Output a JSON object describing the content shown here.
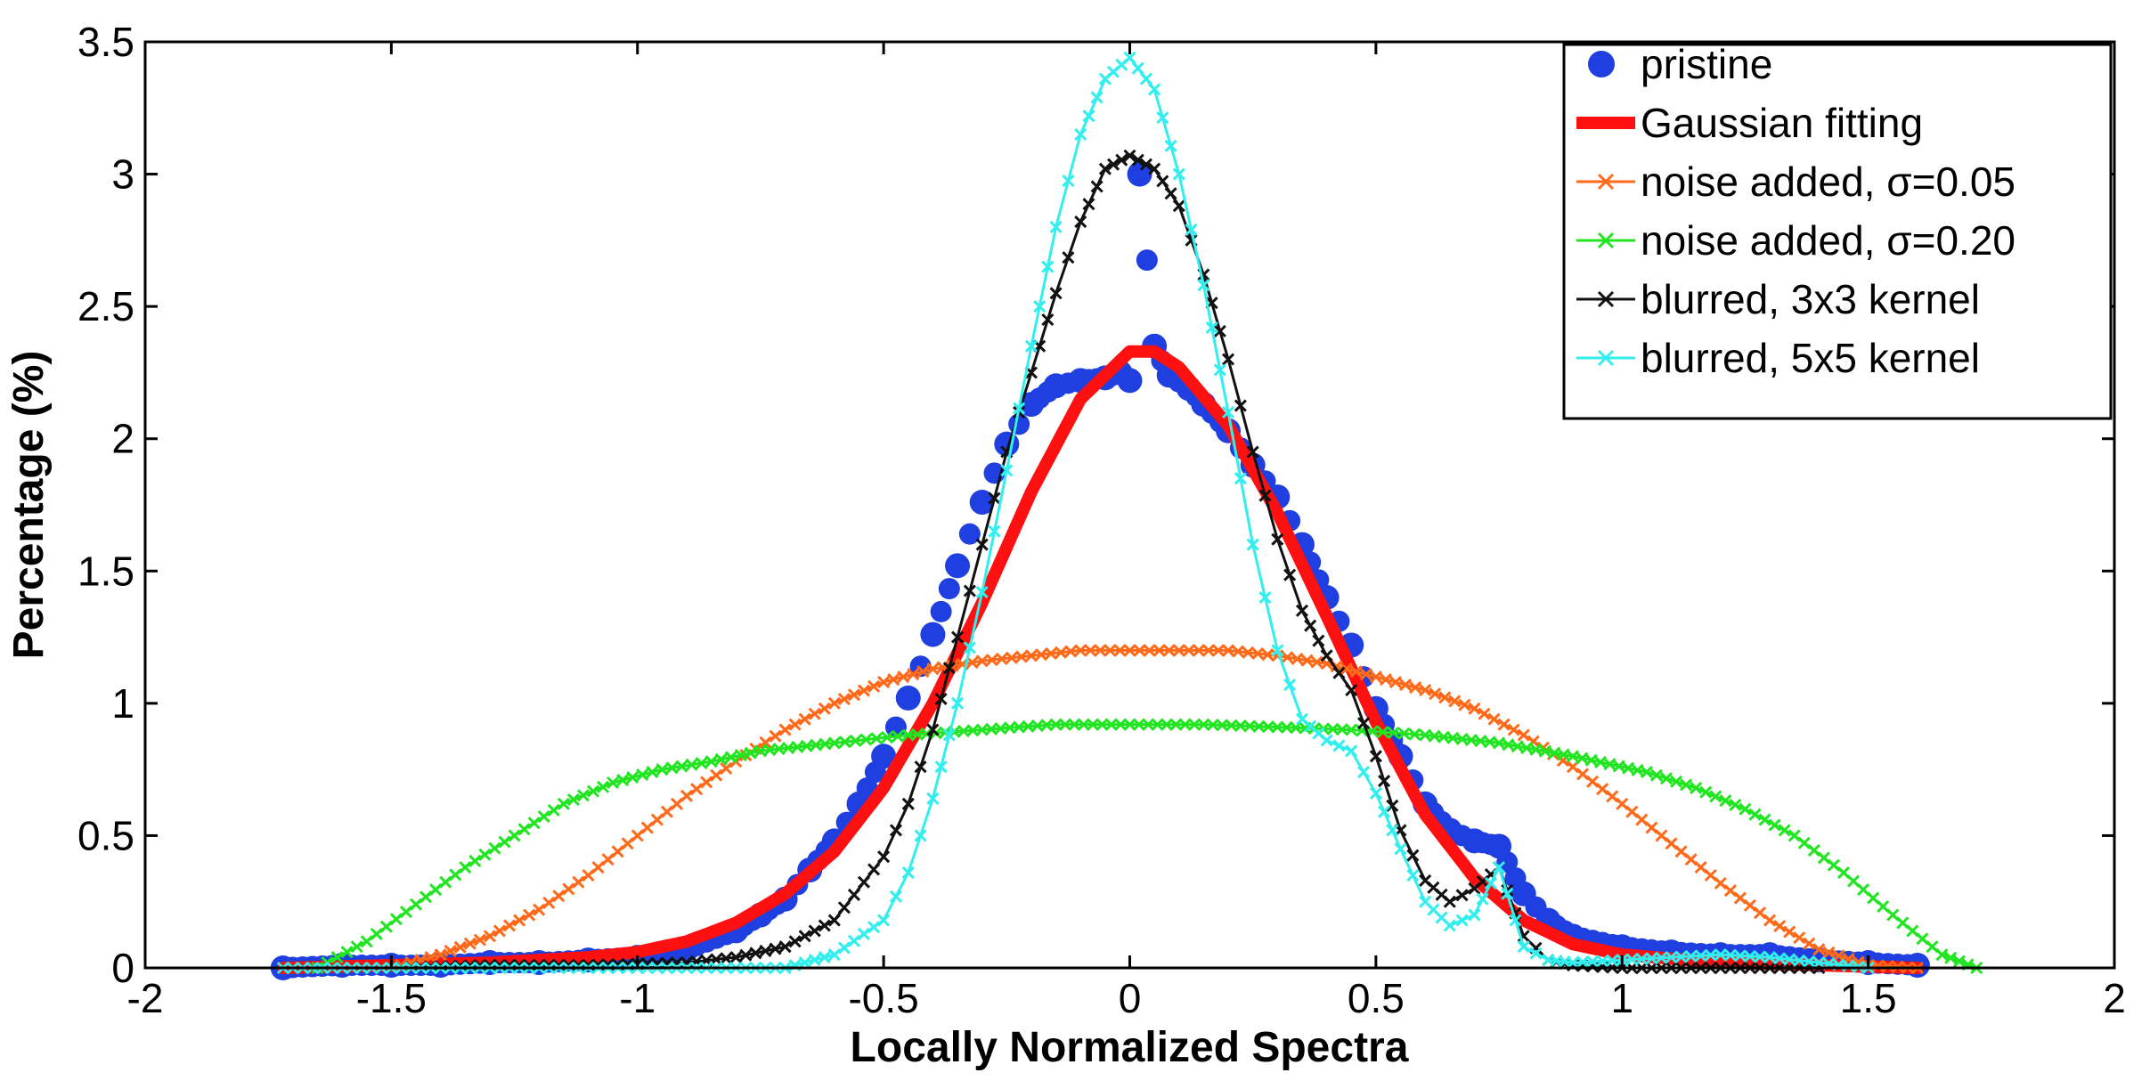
{
  "chart_data": {
    "type": "line",
    "title": "",
    "xlabel": "Locally Normalized Spectra",
    "ylabel": "Percentage (%)",
    "xlim": [
      -2,
      2
    ],
    "ylim": [
      0,
      3.5
    ],
    "grid": false,
    "legend_position": "top-right",
    "x_ticks": [
      "-2",
      "-1.5",
      "-1",
      "-0.5",
      "0",
      "0.5",
      "1",
      "1.5",
      "2"
    ],
    "y_ticks": [
      "0",
      "0.5",
      "1",
      "1.5",
      "2",
      "2.5",
      "3",
      "3.5"
    ],
    "series": [
      {
        "name": "pristine",
        "color": "#1f3fe0",
        "style": "dots",
        "points": [
          [
            -1.72,
            0.0
          ],
          [
            -1.6,
            0.01
          ],
          [
            -1.5,
            0.01
          ],
          [
            -1.4,
            0.01
          ],
          [
            -1.3,
            0.02
          ],
          [
            -1.2,
            0.02
          ],
          [
            -1.1,
            0.03
          ],
          [
            -1.0,
            0.04
          ],
          [
            -0.9,
            0.07
          ],
          [
            -0.8,
            0.14
          ],
          [
            -0.75,
            0.2
          ],
          [
            -0.7,
            0.26
          ],
          [
            -0.65,
            0.37
          ],
          [
            -0.6,
            0.48
          ],
          [
            -0.55,
            0.62
          ],
          [
            -0.5,
            0.8
          ],
          [
            -0.45,
            1.02
          ],
          [
            -0.4,
            1.26
          ],
          [
            -0.35,
            1.52
          ],
          [
            -0.3,
            1.76
          ],
          [
            -0.25,
            1.98
          ],
          [
            -0.2,
            2.13
          ],
          [
            -0.15,
            2.2
          ],
          [
            -0.1,
            2.22
          ],
          [
            -0.05,
            2.23
          ],
          [
            -0.02,
            2.25
          ],
          [
            0.0,
            2.22
          ],
          [
            0.02,
            3.0
          ],
          [
            0.05,
            2.35
          ],
          [
            0.08,
            2.24
          ],
          [
            0.12,
            2.19
          ],
          [
            0.15,
            2.13
          ],
          [
            0.2,
            2.03
          ],
          [
            0.25,
            1.9
          ],
          [
            0.3,
            1.78
          ],
          [
            0.35,
            1.6
          ],
          [
            0.4,
            1.4
          ],
          [
            0.45,
            1.22
          ],
          [
            0.5,
            0.98
          ],
          [
            0.55,
            0.8
          ],
          [
            0.6,
            0.62
          ],
          [
            0.65,
            0.52
          ],
          [
            0.7,
            0.48
          ],
          [
            0.75,
            0.46
          ],
          [
            0.8,
            0.28
          ],
          [
            0.85,
            0.18
          ],
          [
            0.9,
            0.12
          ],
          [
            1.0,
            0.08
          ],
          [
            1.1,
            0.06
          ],
          [
            1.2,
            0.05
          ],
          [
            1.3,
            0.05
          ],
          [
            1.4,
            0.03
          ],
          [
            1.5,
            0.02
          ],
          [
            1.6,
            0.01
          ]
        ]
      },
      {
        "name": "Gaussian fitting",
        "color": "#ff1010",
        "style": "thick-line",
        "points": [
          [
            -1.72,
            0.0
          ],
          [
            -1.5,
            0.01
          ],
          [
            -1.3,
            0.02
          ],
          [
            -1.1,
            0.04
          ],
          [
            -1.0,
            0.06
          ],
          [
            -0.9,
            0.1
          ],
          [
            -0.8,
            0.17
          ],
          [
            -0.7,
            0.28
          ],
          [
            -0.6,
            0.44
          ],
          [
            -0.5,
            0.68
          ],
          [
            -0.4,
            1.0
          ],
          [
            -0.3,
            1.38
          ],
          [
            -0.2,
            1.8
          ],
          [
            -0.1,
            2.15
          ],
          [
            0.0,
            2.33
          ],
          [
            0.05,
            2.33
          ],
          [
            0.1,
            2.27
          ],
          [
            0.2,
            2.05
          ],
          [
            0.3,
            1.72
          ],
          [
            0.4,
            1.33
          ],
          [
            0.5,
            0.93
          ],
          [
            0.6,
            0.58
          ],
          [
            0.7,
            0.34
          ],
          [
            0.8,
            0.18
          ],
          [
            0.9,
            0.09
          ],
          [
            1.0,
            0.05
          ],
          [
            1.2,
            0.02
          ],
          [
            1.4,
            0.01
          ],
          [
            1.6,
            0.0
          ]
        ]
      },
      {
        "name": "noise added, σ=0.05",
        "color": "#ff6a1a",
        "style": "x-line",
        "points": [
          [
            -1.6,
            0.0
          ],
          [
            -1.5,
            0.0
          ],
          [
            -1.4,
            0.05
          ],
          [
            -1.3,
            0.12
          ],
          [
            -1.2,
            0.22
          ],
          [
            -1.1,
            0.35
          ],
          [
            -1.0,
            0.5
          ],
          [
            -0.9,
            0.65
          ],
          [
            -0.8,
            0.78
          ],
          [
            -0.7,
            0.9
          ],
          [
            -0.6,
            1.0
          ],
          [
            -0.5,
            1.08
          ],
          [
            -0.4,
            1.13
          ],
          [
            -0.3,
            1.16
          ],
          [
            -0.2,
            1.18
          ],
          [
            -0.1,
            1.2
          ],
          [
            0.0,
            1.2
          ],
          [
            0.1,
            1.2
          ],
          [
            0.2,
            1.2
          ],
          [
            0.3,
            1.18
          ],
          [
            0.4,
            1.15
          ],
          [
            0.5,
            1.1
          ],
          [
            0.6,
            1.05
          ],
          [
            0.7,
            0.98
          ],
          [
            0.8,
            0.88
          ],
          [
            0.9,
            0.76
          ],
          [
            1.0,
            0.62
          ],
          [
            1.1,
            0.47
          ],
          [
            1.2,
            0.32
          ],
          [
            1.3,
            0.18
          ],
          [
            1.4,
            0.07
          ],
          [
            1.5,
            0.01
          ],
          [
            1.6,
            0.0
          ]
        ]
      },
      {
        "name": "noise added, σ=0.20",
        "color": "#22e522",
        "style": "x-line",
        "points": [
          [
            -1.65,
            0.0
          ],
          [
            -1.55,
            0.1
          ],
          [
            -1.45,
            0.24
          ],
          [
            -1.35,
            0.38
          ],
          [
            -1.25,
            0.5
          ],
          [
            -1.15,
            0.62
          ],
          [
            -1.05,
            0.7
          ],
          [
            -0.95,
            0.75
          ],
          [
            -0.85,
            0.78
          ],
          [
            -0.75,
            0.82
          ],
          [
            -0.6,
            0.85
          ],
          [
            -0.45,
            0.88
          ],
          [
            -0.3,
            0.9
          ],
          [
            -0.15,
            0.92
          ],
          [
            0.0,
            0.92
          ],
          [
            0.15,
            0.92
          ],
          [
            0.3,
            0.91
          ],
          [
            0.45,
            0.9
          ],
          [
            0.6,
            0.88
          ],
          [
            0.75,
            0.85
          ],
          [
            0.9,
            0.8
          ],
          [
            1.05,
            0.74
          ],
          [
            1.15,
            0.68
          ],
          [
            1.25,
            0.6
          ],
          [
            1.35,
            0.5
          ],
          [
            1.45,
            0.36
          ],
          [
            1.55,
            0.2
          ],
          [
            1.65,
            0.05
          ],
          [
            1.72,
            0.0
          ]
        ]
      },
      {
        "name": "blurred, 3x3 kernel",
        "color": "#111111",
        "style": "x-line",
        "points": [
          [
            -1.72,
            0.0
          ],
          [
            -1.5,
            0.0
          ],
          [
            -1.3,
            0.01
          ],
          [
            -1.1,
            0.01
          ],
          [
            -0.9,
            0.02
          ],
          [
            -0.8,
            0.04
          ],
          [
            -0.7,
            0.08
          ],
          [
            -0.6,
            0.18
          ],
          [
            -0.5,
            0.42
          ],
          [
            -0.45,
            0.62
          ],
          [
            -0.4,
            0.9
          ],
          [
            -0.35,
            1.25
          ],
          [
            -0.3,
            1.6
          ],
          [
            -0.25,
            1.95
          ],
          [
            -0.2,
            2.25
          ],
          [
            -0.15,
            2.55
          ],
          [
            -0.1,
            2.82
          ],
          [
            -0.05,
            3.02
          ],
          [
            0.0,
            3.07
          ],
          [
            0.05,
            3.02
          ],
          [
            0.1,
            2.88
          ],
          [
            0.15,
            2.62
          ],
          [
            0.2,
            2.3
          ],
          [
            0.25,
            1.95
          ],
          [
            0.3,
            1.62
          ],
          [
            0.35,
            1.35
          ],
          [
            0.4,
            1.18
          ],
          [
            0.45,
            1.05
          ],
          [
            0.5,
            0.8
          ],
          [
            0.55,
            0.52
          ],
          [
            0.6,
            0.33
          ],
          [
            0.65,
            0.25
          ],
          [
            0.7,
            0.3
          ],
          [
            0.75,
            0.38
          ],
          [
            0.8,
            0.12
          ],
          [
            0.85,
            0.03
          ],
          [
            0.9,
            0.01
          ],
          [
            1.0,
            0.0
          ],
          [
            1.2,
            0.0
          ],
          [
            1.4,
            0.0
          ]
        ]
      },
      {
        "name": "blurred, 5x5 kernel",
        "color": "#33eeee",
        "style": "x-line",
        "points": [
          [
            -1.72,
            0.0
          ],
          [
            -1.5,
            0.0
          ],
          [
            -1.3,
            0.0
          ],
          [
            -1.1,
            0.0
          ],
          [
            -0.9,
            0.0
          ],
          [
            -0.7,
            0.0
          ],
          [
            -0.6,
            0.05
          ],
          [
            -0.5,
            0.18
          ],
          [
            -0.45,
            0.36
          ],
          [
            -0.4,
            0.64
          ],
          [
            -0.35,
            1.0
          ],
          [
            -0.3,
            1.42
          ],
          [
            -0.25,
            1.88
          ],
          [
            -0.2,
            2.35
          ],
          [
            -0.15,
            2.8
          ],
          [
            -0.1,
            3.15
          ],
          [
            -0.05,
            3.36
          ],
          [
            0.0,
            3.44
          ],
          [
            0.05,
            3.32
          ],
          [
            0.1,
            3.0
          ],
          [
            0.15,
            2.58
          ],
          [
            0.2,
            2.1
          ],
          [
            0.25,
            1.6
          ],
          [
            0.3,
            1.2
          ],
          [
            0.35,
            0.94
          ],
          [
            0.4,
            0.86
          ],
          [
            0.45,
            0.82
          ],
          [
            0.5,
            0.66
          ],
          [
            0.55,
            0.45
          ],
          [
            0.6,
            0.25
          ],
          [
            0.65,
            0.16
          ],
          [
            0.7,
            0.2
          ],
          [
            0.75,
            0.38
          ],
          [
            0.8,
            0.08
          ],
          [
            0.85,
            0.03
          ],
          [
            0.9,
            0.02
          ],
          [
            1.0,
            0.03
          ],
          [
            1.1,
            0.04
          ],
          [
            1.2,
            0.05
          ],
          [
            1.3,
            0.04
          ],
          [
            1.4,
            0.02
          ],
          [
            1.5,
            0.0
          ]
        ]
      }
    ]
  }
}
